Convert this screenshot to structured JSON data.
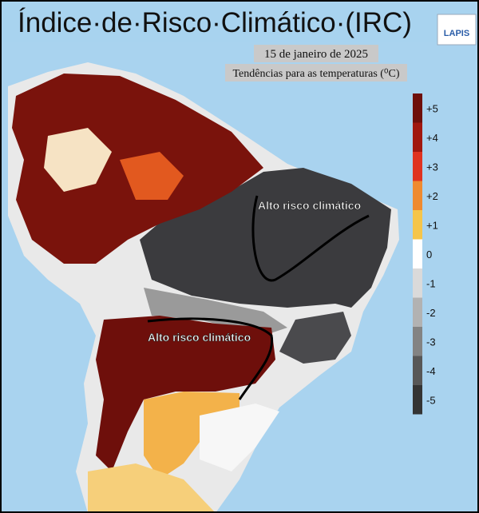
{
  "title": "Índice·de·Risco·Climático·(IRC)",
  "logo": "LAPIS",
  "date": "15 de janeiro de 2025",
  "subtitle": "Tendências para as temperaturas (⁰C)",
  "legend": [
    {
      "label": "+5",
      "color": "#6e0f0b"
    },
    {
      "label": "+4",
      "color": "#a0170f"
    },
    {
      "label": "+3",
      "color": "#df3220"
    },
    {
      "label": "+2",
      "color": "#ef8a30"
    },
    {
      "label": "+1",
      "color": "#f5c54a"
    },
    {
      "label": "0",
      "color": "#ffffff"
    },
    {
      "label": "-1",
      "color": "#dadada"
    },
    {
      "label": "-2",
      "color": "#b2b2b2"
    },
    {
      "label": "-3",
      "color": "#838383"
    },
    {
      "label": "-4",
      "color": "#575757"
    },
    {
      "label": "-5",
      "color": "#343434"
    }
  ],
  "annotations": [
    "Alto risco climático",
    "Alto risco climático"
  ]
}
